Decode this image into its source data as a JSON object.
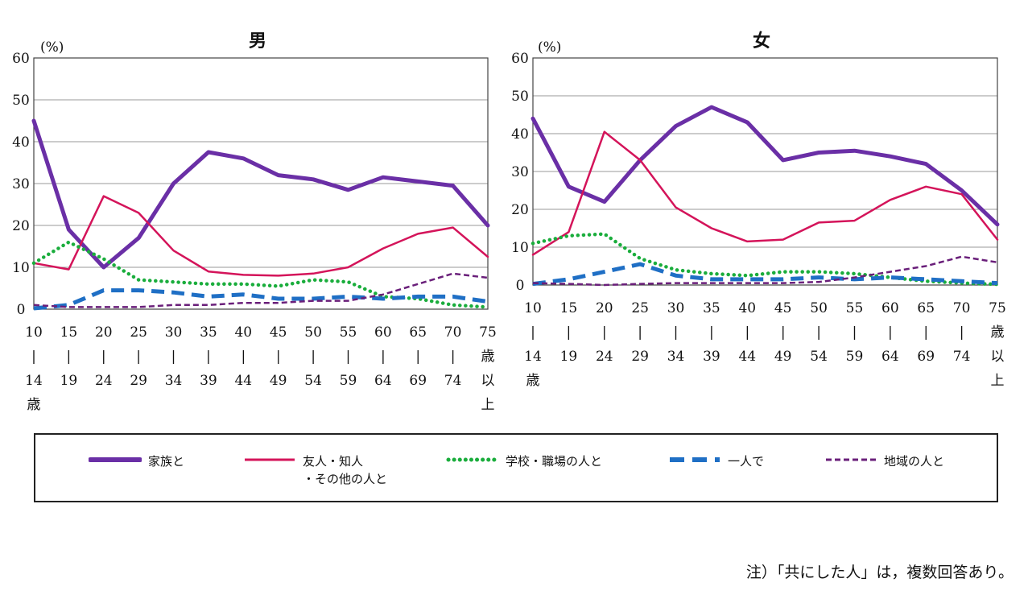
{
  "note": "注）「共にした人」は，複数回答あり。",
  "legend": [
    {
      "label": "家族と",
      "color": "#6a2fa6",
      "style": "solid-thick"
    },
    {
      "label": "友人・知人\n・その他の人と",
      "color": "#d4145a",
      "style": "solid"
    },
    {
      "label": "学校・職場の人と",
      "color": "#1aad3c",
      "style": "dotted"
    },
    {
      "label": "一人で",
      "color": "#1f6fc5",
      "style": "dashed-thick"
    },
    {
      "label": "地域の人と",
      "color": "#6a1f7a",
      "style": "dashed"
    }
  ],
  "chart_data": [
    {
      "type": "line",
      "title": "男",
      "ylabel": "(%)",
      "ylim": [
        0,
        60
      ],
      "yticks": [
        "0",
        "10",
        "20",
        "30",
        "40",
        "50",
        "60"
      ],
      "categories": [
        "10-14歳",
        "15-19",
        "20-24",
        "25-29",
        "30-34",
        "35-39",
        "40-44",
        "45-49",
        "50-54",
        "55-59",
        "60-64",
        "65-69",
        "70-74",
        "75歳以上"
      ],
      "tick_labels": [
        [
          "10",
          "|",
          "14",
          "歳"
        ],
        [
          "15",
          "|",
          "19"
        ],
        [
          "20",
          "|",
          "24"
        ],
        [
          "25",
          "|",
          "29"
        ],
        [
          "30",
          "|",
          "34"
        ],
        [
          "35",
          "|",
          "39"
        ],
        [
          "40",
          "|",
          "44"
        ],
        [
          "45",
          "|",
          "49"
        ],
        [
          "50",
          "|",
          "54"
        ],
        [
          "55",
          "|",
          "59"
        ],
        [
          "60",
          "|",
          "64"
        ],
        [
          "65",
          "|",
          "69"
        ],
        [
          "70",
          "|",
          "74"
        ],
        [
          "75",
          "歳",
          "以",
          "上"
        ]
      ],
      "grid": true,
      "series": [
        {
          "name": "家族と",
          "values": [
            45,
            19,
            10,
            17,
            30,
            37.5,
            36,
            32,
            31,
            28.5,
            31.5,
            30.5,
            29.5,
            20
          ]
        },
        {
          "name": "友人・知人・その他の人と",
          "values": [
            11,
            9.5,
            27,
            23,
            14,
            9,
            8.2,
            8,
            8.5,
            10,
            14.5,
            18,
            19.5,
            12.5
          ]
        },
        {
          "name": "学校・職場の人と",
          "values": [
            11,
            16,
            12,
            7,
            6.5,
            6,
            6,
            5.5,
            7,
            6.5,
            3,
            2.5,
            1,
            0.5
          ]
        },
        {
          "name": "一人で",
          "values": [
            0.2,
            1,
            4.5,
            4.5,
            4,
            3,
            3.5,
            2.5,
            2.5,
            3,
            2.5,
            3,
            3,
            1.8
          ]
        },
        {
          "name": "地域の人と",
          "values": [
            1,
            0.5,
            0.5,
            0.5,
            1,
            1,
            1.5,
            1.5,
            2,
            2,
            3.5,
            6,
            8.5,
            7.5
          ]
        }
      ]
    },
    {
      "type": "line",
      "title": "女",
      "ylabel": "(%)",
      "ylim": [
        0,
        60
      ],
      "yticks": [
        "0",
        "10",
        "20",
        "30",
        "40",
        "50",
        "60"
      ],
      "categories": [
        "10-14歳",
        "15-19",
        "20-24",
        "25-29",
        "30-34",
        "35-39",
        "40-44",
        "45-49",
        "50-54",
        "55-59",
        "60-64",
        "65-69",
        "70-74",
        "75歳以上"
      ],
      "tick_labels": [
        [
          "10",
          "|",
          "14",
          "歳"
        ],
        [
          "15",
          "|",
          "19"
        ],
        [
          "20",
          "|",
          "24"
        ],
        [
          "25",
          "|",
          "29"
        ],
        [
          "30",
          "|",
          "34"
        ],
        [
          "35",
          "|",
          "39"
        ],
        [
          "40",
          "|",
          "44"
        ],
        [
          "45",
          "|",
          "49"
        ],
        [
          "50",
          "|",
          "54"
        ],
        [
          "55",
          "|",
          "59"
        ],
        [
          "60",
          "|",
          "64"
        ],
        [
          "65",
          "|",
          "69"
        ],
        [
          "70",
          "|",
          "74"
        ],
        [
          "75",
          "歳",
          "以",
          "上"
        ]
      ],
      "grid": true,
      "series": [
        {
          "name": "家族と",
          "values": [
            44,
            26,
            22,
            33,
            42,
            47,
            43,
            33,
            35,
            35.5,
            34,
            32,
            25,
            16
          ]
        },
        {
          "name": "友人・知人・その他の人と",
          "values": [
            8,
            14,
            40.5,
            33,
            20.5,
            15,
            11.5,
            12,
            16.5,
            17,
            22.5,
            26,
            24,
            12
          ]
        },
        {
          "name": "学校・職場の人と",
          "values": [
            11,
            13,
            13.5,
            7,
            4,
            3,
            2.5,
            3.5,
            3.5,
            3,
            2,
            1,
            0.5,
            0.2
          ]
        },
        {
          "name": "一人で",
          "values": [
            0.3,
            1.5,
            3.5,
            5.5,
            2.5,
            1.5,
            1.5,
            1.5,
            2,
            1.5,
            2,
            1.5,
            1,
            0.5
          ]
        },
        {
          "name": "地域の人と",
          "values": [
            0.5,
            0.3,
            0,
            0.3,
            0.5,
            0.5,
            0.5,
            0.5,
            0.8,
            2,
            3.5,
            5,
            7.5,
            6
          ]
        }
      ]
    }
  ]
}
